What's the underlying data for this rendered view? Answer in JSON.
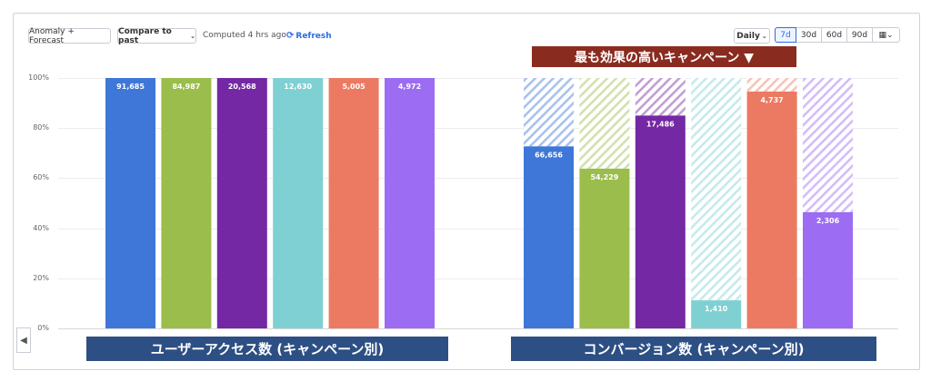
{
  "toolbar": {
    "anomaly_label": "Anomaly + Forecast",
    "compare_label": "Compare to past",
    "computed_text": "Computed 4 hrs ago",
    "refresh_label": "Refresh",
    "interval_label": "Daily",
    "ranges": [
      "7d",
      "30d",
      "60d",
      "90d"
    ],
    "active_range": "7d"
  },
  "annotations": {
    "top_banner": "最も効果の高いキャンペーン ▼",
    "left_group_label": "ユーザーアクセス数 (キャンペーン別)",
    "right_group_label": "コンバージョン数 (キャンペーン別)"
  },
  "colors": {
    "blue": "#3e77d8",
    "green": "#9bbd4c",
    "purple": "#7428a3",
    "teal": "#7fd0d2",
    "coral": "#ec7a62",
    "lavender": "#9c6cf2",
    "banner": "#8a2b1f",
    "label_box": "#2d4f84"
  },
  "chart_data": {
    "type": "bar",
    "y_ticks": [
      "0%",
      "20%",
      "40%",
      "60%",
      "80%",
      "100%"
    ],
    "ylim": [
      0,
      100
    ],
    "groups": [
      {
        "name": "ユーザーアクセス数 (キャンペーン別)",
        "bars": [
          {
            "color": "blue",
            "value": 91685,
            "fill_pct": 100
          },
          {
            "color": "green",
            "value": 84987,
            "fill_pct": 100
          },
          {
            "color": "purple",
            "value": 20568,
            "fill_pct": 100
          },
          {
            "color": "teal",
            "value": 12630,
            "fill_pct": 100
          },
          {
            "color": "coral",
            "value": 5005,
            "fill_pct": 100
          },
          {
            "color": "lavender",
            "value": 4972,
            "fill_pct": 100
          }
        ]
      },
      {
        "name": "コンバージョン数 (キャンペーン別)",
        "bars": [
          {
            "color": "blue",
            "value": 66656,
            "fill_pct": 72.7
          },
          {
            "color": "green",
            "value": 54229,
            "fill_pct": 63.8
          },
          {
            "color": "purple",
            "value": 17486,
            "fill_pct": 85
          },
          {
            "color": "teal",
            "value": 1410,
            "fill_pct": 11.2
          },
          {
            "color": "coral",
            "value": 4737,
            "fill_pct": 94.6
          },
          {
            "color": "lavender",
            "value": 2306,
            "fill_pct": 46.4
          }
        ]
      }
    ]
  }
}
